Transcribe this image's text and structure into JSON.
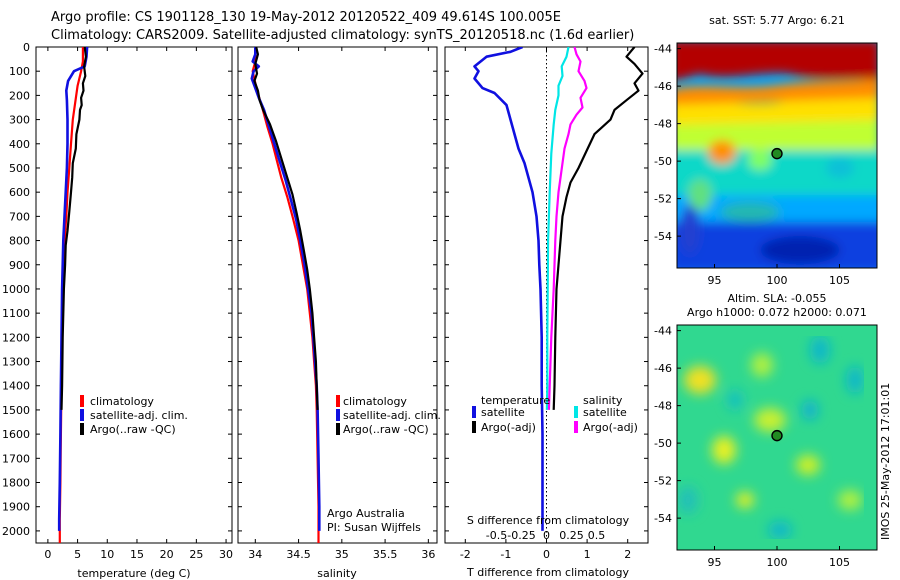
{
  "header": {
    "line1": "Argo profile: CS 1901128_130 19-May-2012 20120522_409 49.614S 100.005E",
    "line2": "Climatology: CARS2009. Satellite-adjusted climatology: synTS_20120518.nc (1.6d earlier)"
  },
  "colors": {
    "climatology": "#ff0000",
    "satellite": "#1010e0",
    "argo": "#000000",
    "sal_satellite": "#00e6e6",
    "sal_argo": "#ff00ff"
  },
  "chart_data": [
    {
      "type": "line",
      "id": "temperature",
      "xlabel": "temperature (deg C)",
      "ylabel": "",
      "xlim": [
        -2,
        31
      ],
      "ylim": [
        2050,
        0
      ],
      "xticks": [
        0,
        5,
        10,
        15,
        20,
        25,
        30
      ],
      "yticks": [
        0,
        100,
        200,
        300,
        400,
        500,
        600,
        700,
        800,
        900,
        1000,
        1100,
        1200,
        1300,
        1400,
        1500,
        1600,
        1700,
        1800,
        1900,
        2000
      ],
      "legend": [
        "climatology",
        "satellite-adj. clim.",
        "Argo(..raw -QC)"
      ],
      "series": [
        {
          "name": "climatology",
          "color": "#ff0000",
          "points": [
            [
              5.9,
              0
            ],
            [
              5.9,
              60
            ],
            [
              5.6,
              100
            ],
            [
              5.0,
              160
            ],
            [
              4.6,
              230
            ],
            [
              4.2,
              300
            ],
            [
              3.9,
              400
            ],
            [
              3.6,
              500
            ],
            [
              3.3,
              600
            ],
            [
              3.1,
              700
            ],
            [
              2.8,
              800
            ],
            [
              2.6,
              900
            ],
            [
              2.5,
              1000
            ],
            [
              2.4,
              1200
            ],
            [
              2.3,
              1400
            ],
            [
              2.2,
              1600
            ],
            [
              2.1,
              1800
            ],
            [
              2.0,
              1950
            ],
            [
              2.0,
              2050
            ]
          ]
        },
        {
          "name": "satellite-adj. clim.",
          "color": "#1010e0",
          "points": [
            [
              6.6,
              0
            ],
            [
              6.5,
              40
            ],
            [
              6.2,
              80
            ],
            [
              4.4,
              100
            ],
            [
              3.4,
              140
            ],
            [
              3.1,
              180
            ],
            [
              3.2,
              220
            ],
            [
              3.3,
              300
            ],
            [
              3.3,
              400
            ],
            [
              3.2,
              500
            ],
            [
              3.0,
              600
            ],
            [
              2.8,
              700
            ],
            [
              2.6,
              800
            ],
            [
              2.5,
              900
            ],
            [
              2.4,
              1000
            ],
            [
              2.3,
              1200
            ],
            [
              2.2,
              1400
            ],
            [
              2.1,
              1600
            ],
            [
              2.0,
              1800
            ],
            [
              1.9,
              1950
            ],
            [
              1.9,
              2000
            ]
          ]
        },
        {
          "name": "Argo(..raw -QC)",
          "color": "#000000",
          "points": [
            [
              6.2,
              0
            ],
            [
              6.4,
              40
            ],
            [
              6.1,
              80
            ],
            [
              6.3,
              120
            ],
            [
              5.9,
              150
            ],
            [
              6.0,
              180
            ],
            [
              5.6,
              210
            ],
            [
              5.7,
              240
            ],
            [
              5.4,
              260
            ],
            [
              5.3,
              300
            ],
            [
              4.8,
              360
            ],
            [
              4.7,
              420
            ],
            [
              4.2,
              480
            ],
            [
              4.1,
              540
            ],
            [
              3.9,
              600
            ],
            [
              3.6,
              680
            ],
            [
              3.3,
              760
            ],
            [
              3.0,
              820
            ],
            [
              2.9,
              900
            ],
            [
              2.7,
              1000
            ],
            [
              2.5,
              1200
            ],
            [
              2.4,
              1400
            ],
            [
              2.3,
              1500
            ]
          ]
        }
      ]
    },
    {
      "type": "line",
      "id": "salinity",
      "xlabel": "salinity",
      "ylabel": "",
      "xlim": [
        33.8,
        36.1
      ],
      "ylim": [
        2050,
        0
      ],
      "xticks": [
        "34",
        "34.5",
        "35",
        "35.5",
        "36"
      ],
      "legend": [
        "climatology",
        "satellite-adj. clim.",
        "Argo(..raw -QC)"
      ],
      "credit": [
        "Argo Australia",
        "PI: Susan Wijffels"
      ],
      "series": [
        {
          "name": "climatology",
          "color": "#ff0000",
          "points": [
            [
              34.0,
              0
            ],
            [
              34.0,
              60
            ],
            [
              33.97,
              100
            ],
            [
              34.02,
              180
            ],
            [
              34.08,
              250
            ],
            [
              34.14,
              330
            ],
            [
              34.2,
              400
            ],
            [
              34.25,
              470
            ],
            [
              34.3,
              540
            ],
            [
              34.37,
              620
            ],
            [
              34.43,
              700
            ],
            [
              34.5,
              800
            ],
            [
              34.55,
              900
            ],
            [
              34.6,
              1000
            ],
            [
              34.63,
              1100
            ],
            [
              34.66,
              1200
            ],
            [
              34.68,
              1300
            ],
            [
              34.7,
              1400
            ],
            [
              34.71,
              1500
            ],
            [
              34.72,
              1700
            ],
            [
              34.73,
              1900
            ],
            [
              34.73,
              2050
            ]
          ]
        },
        {
          "name": "satellite-adj. clim.",
          "color": "#1010e0",
          "points": [
            [
              34.0,
              0
            ],
            [
              34.0,
              30
            ],
            [
              33.97,
              60
            ],
            [
              34.04,
              80
            ],
            [
              33.98,
              100
            ],
            [
              33.96,
              130
            ],
            [
              34.0,
              170
            ],
            [
              34.04,
              210
            ],
            [
              34.1,
              260
            ],
            [
              34.16,
              330
            ],
            [
              34.22,
              400
            ],
            [
              34.28,
              470
            ],
            [
              34.35,
              550
            ],
            [
              34.41,
              630
            ],
            [
              34.47,
              710
            ],
            [
              34.52,
              800
            ],
            [
              34.57,
              900
            ],
            [
              34.61,
              1000
            ],
            [
              34.65,
              1100
            ],
            [
              34.67,
              1200
            ],
            [
              34.69,
              1300
            ],
            [
              34.71,
              1400
            ],
            [
              34.72,
              1500
            ],
            [
              34.73,
              1700
            ],
            [
              34.74,
              1900
            ],
            [
              34.74,
              2000
            ]
          ]
        },
        {
          "name": "Argo(..raw -QC)",
          "color": "#000000",
          "points": [
            [
              34.01,
              0
            ],
            [
              34.03,
              30
            ],
            [
              34.0,
              70
            ],
            [
              34.02,
              110
            ],
            [
              33.99,
              140
            ],
            [
              34.03,
              180
            ],
            [
              34.05,
              220
            ],
            [
              34.09,
              260
            ],
            [
              34.17,
              320
            ],
            [
              34.24,
              390
            ],
            [
              34.3,
              460
            ],
            [
              34.36,
              530
            ],
            [
              34.43,
              610
            ],
            [
              34.48,
              690
            ],
            [
              34.52,
              760
            ],
            [
              34.56,
              840
            ],
            [
              34.6,
              920
            ],
            [
              34.63,
              1000
            ],
            [
              34.66,
              1100
            ],
            [
              34.68,
              1200
            ],
            [
              34.7,
              1300
            ],
            [
              34.71,
              1400
            ],
            [
              34.72,
              1500
            ]
          ]
        }
      ]
    },
    {
      "type": "line",
      "id": "difference",
      "xlabel": "T difference from climatology",
      "xlabel_top": "S difference from climatology",
      "xlim": [
        -2.5,
        2.5
      ],
      "ylim": [
        2050,
        0
      ],
      "xticks": [
        "-2",
        "-1",
        "0",
        "1",
        "2"
      ],
      "sticks": [
        "-0.5",
        "-0.25",
        "0",
        "0.25",
        "0.5"
      ],
      "legend_titles": [
        "temperature",
        "salinity"
      ],
      "legend": [
        "satellite",
        "Argo(-adj)",
        "satellite",
        "Argo(-adj)"
      ],
      "series": [
        {
          "name": "temperature satellite",
          "color": "#1010e0",
          "points": [
            [
              -0.6,
              0
            ],
            [
              -0.9,
              20
            ],
            [
              -1.5,
              40
            ],
            [
              -1.8,
              80
            ],
            [
              -1.7,
              100
            ],
            [
              -1.8,
              130
            ],
            [
              -1.6,
              170
            ],
            [
              -1.3,
              190
            ],
            [
              -1.0,
              240
            ],
            [
              -0.9,
              300
            ],
            [
              -0.8,
              360
            ],
            [
              -0.7,
              420
            ],
            [
              -0.55,
              480
            ],
            [
              -0.45,
              540
            ],
            [
              -0.35,
              600
            ],
            [
              -0.25,
              700
            ],
            [
              -0.2,
              800
            ],
            [
              -0.18,
              900
            ],
            [
              -0.15,
              1000
            ],
            [
              -0.12,
              1200
            ],
            [
              -0.12,
              1400
            ],
            [
              -0.1,
              1600
            ],
            [
              -0.1,
              1800
            ],
            [
              -0.1,
              2000
            ]
          ]
        },
        {
          "name": "temperature Argo(-adj)",
          "color": "#000000",
          "points": [
            [
              2.2,
              0
            ],
            [
              2.1,
              20
            ],
            [
              2.0,
              40
            ],
            [
              2.2,
              70
            ],
            [
              2.4,
              110
            ],
            [
              2.2,
              150
            ],
            [
              2.3,
              180
            ],
            [
              2.0,
              220
            ],
            [
              1.7,
              260
            ],
            [
              1.6,
              300
            ],
            [
              1.2,
              360
            ],
            [
              1.0,
              430
            ],
            [
              0.8,
              500
            ],
            [
              0.6,
              560
            ],
            [
              0.5,
              620
            ],
            [
              0.4,
              700
            ],
            [
              0.35,
              800
            ],
            [
              0.3,
              900
            ],
            [
              0.25,
              1000
            ],
            [
              0.22,
              1200
            ],
            [
              0.2,
              1400
            ],
            [
              0.18,
              1500
            ]
          ]
        },
        {
          "name": "salinity satellite",
          "color": "#00e6e6",
          "points": [
            [
              0.55,
              0
            ],
            [
              0.5,
              40
            ],
            [
              0.38,
              80
            ],
            [
              0.4,
              120
            ],
            [
              0.3,
              160
            ],
            [
              0.3,
              200
            ],
            [
              0.22,
              260
            ],
            [
              0.18,
              320
            ],
            [
              0.15,
              380
            ],
            [
              0.12,
              440
            ],
            [
              0.1,
              520
            ],
            [
              0.08,
              600
            ],
            [
              0.06,
              700
            ],
            [
              0.04,
              800
            ],
            [
              0.03,
              1000
            ],
            [
              0.02,
              1200
            ],
            [
              0.02,
              1400
            ],
            [
              0.01,
              1500
            ]
          ]
        },
        {
          "name": "salinity Argo(-adj)",
          "color": "#ff00ff",
          "points": [
            [
              0.7,
              0
            ],
            [
              0.75,
              30
            ],
            [
              0.85,
              60
            ],
            [
              0.8,
              100
            ],
            [
              0.95,
              140
            ],
            [
              1.0,
              170
            ],
            [
              0.85,
              210
            ],
            [
              0.9,
              250
            ],
            [
              0.75,
              280
            ],
            [
              0.6,
              320
            ],
            [
              0.55,
              360
            ],
            [
              0.45,
              420
            ],
            [
              0.4,
              480
            ],
            [
              0.35,
              540
            ],
            [
              0.3,
              600
            ],
            [
              0.25,
              700
            ],
            [
              0.22,
              800
            ],
            [
              0.2,
              900
            ],
            [
              0.18,
              1000
            ],
            [
              0.15,
              1100
            ],
            [
              0.12,
              1200
            ],
            [
              0.1,
              1300
            ],
            [
              0.08,
              1400
            ],
            [
              0.06,
              1500
            ]
          ]
        }
      ]
    },
    {
      "type": "heatmap",
      "id": "sst_map",
      "title": "sat. SST: 5.77  Argo: 6.21",
      "xticks": [
        "95",
        "100",
        "105"
      ],
      "yticks": [
        "-44",
        "-46",
        "-48",
        "-50",
        "-52",
        "-54"
      ],
      "xlim": [
        92,
        108
      ],
      "ylim": [
        -55.7,
        -43.7
      ],
      "marker": [
        100.0,
        -49.6
      ]
    },
    {
      "type": "heatmap",
      "id": "sla_map",
      "title_line1": "Altim. SLA: -0.055",
      "title_line2": "Argo h1000: 0.072 h2000: 0.071",
      "xticks": [
        "95",
        "100",
        "105"
      ],
      "yticks": [
        "-44",
        "-46",
        "-48",
        "-50",
        "-52",
        "-54"
      ],
      "xlim": [
        92,
        108
      ],
      "ylim": [
        -55.7,
        -43.7
      ],
      "marker": [
        100.0,
        -49.6
      ]
    }
  ],
  "footer": {
    "credit": "IMOS 25-May-2012 17:01:01"
  }
}
